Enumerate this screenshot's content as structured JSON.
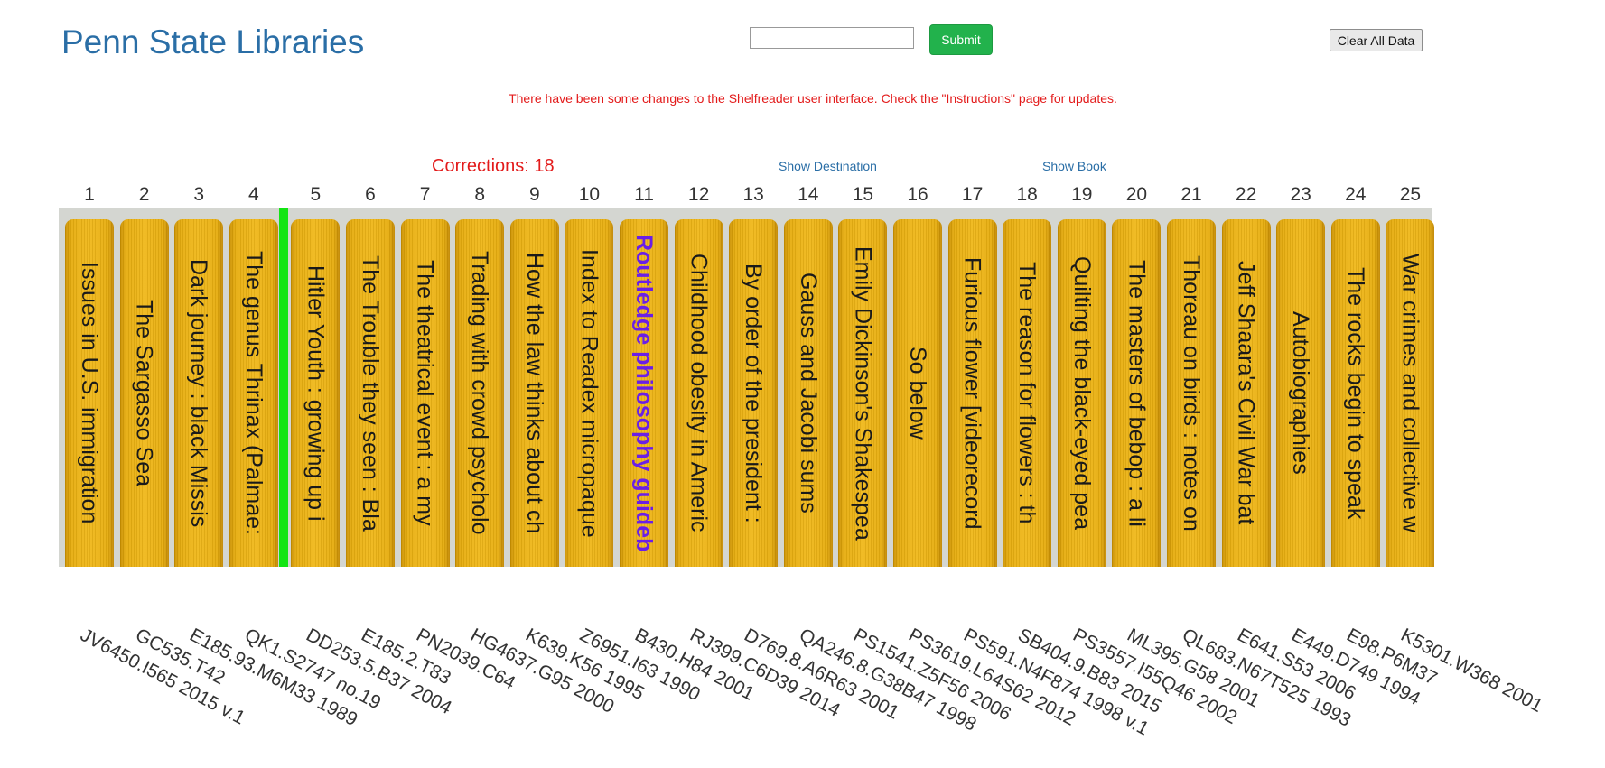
{
  "header": {
    "title": "Penn State Libraries",
    "search_value": "",
    "submit_label": "Submit",
    "clear_label": "Clear All Data"
  },
  "notice": "There have been some changes to the Shelfreader user interface. Check the \"Instructions\" page for updates.",
  "status": {
    "corrections": "Corrections: 18",
    "show_destination": "Show Destination",
    "show_book": "Show Book"
  },
  "colors": {
    "title_blue": "#2a6ea6",
    "notice_red": "#e31b1b",
    "submit_green": "#22b24c",
    "marker_green": "#13e513",
    "highlight_purple": "#6a1fe6",
    "book_gold": "#f0b81a"
  },
  "shelf": {
    "marker_after_position": 4,
    "highlighted_position": 11,
    "books": [
      {
        "position": "1",
        "title": "Issues in U.S. immigration",
        "call_number": "JV6450.I565 2015 v.1"
      },
      {
        "position": "2",
        "title": "The Sargasso Sea",
        "call_number": "GC535.T42"
      },
      {
        "position": "3",
        "title": "Dark journey : black Missis",
        "call_number": "E185.93.M6M33 1989"
      },
      {
        "position": "4",
        "title": "The genus Thrinax (Palmae:",
        "call_number": "QK1.S2747 no.19"
      },
      {
        "position": "5",
        "title": "Hitler Youth : growing up i",
        "call_number": "DD253.5.B37 2004"
      },
      {
        "position": "6",
        "title": "The Trouble they seen : Bla",
        "call_number": "E185.2.T83"
      },
      {
        "position": "7",
        "title": "The theatrical event : a my",
        "call_number": "PN2039.C64"
      },
      {
        "position": "8",
        "title": "Trading with crowd psycholo",
        "call_number": "HG4637.G95 2000"
      },
      {
        "position": "9",
        "title": "How the law thinks about ch",
        "call_number": "K639.K56 1995"
      },
      {
        "position": "10",
        "title": "Index to Readex micropaque",
        "call_number": "Z6951.I63 1990"
      },
      {
        "position": "11",
        "title": "Routledge philosophy guideb",
        "call_number": "B430.H84 2001"
      },
      {
        "position": "12",
        "title": "Childhood obesity in Americ",
        "call_number": "RJ399.C6D39 2014"
      },
      {
        "position": "13",
        "title": "By order of the president :",
        "call_number": "D769.8.A6R63 2001"
      },
      {
        "position": "14",
        "title": "Gauss and Jacobi sums",
        "call_number": "QA246.8.G38B47 1998"
      },
      {
        "position": "15",
        "title": "Emily Dickinson's Shakespea",
        "call_number": "PS1541.Z5F56 2006"
      },
      {
        "position": "16",
        "title": "So below",
        "call_number": "PS3619.L64S62 2012"
      },
      {
        "position": "17",
        "title": "Furious flower [videorecord",
        "call_number": "PS591.N4F874 1998 v.1"
      },
      {
        "position": "18",
        "title": "The reason for flowers : th",
        "call_number": "SB404.9.B83 2015"
      },
      {
        "position": "19",
        "title": "Quilting the black-eyed pea",
        "call_number": "PS3557.I55Q46 2002"
      },
      {
        "position": "20",
        "title": "The masters of bebop : a li",
        "call_number": "ML395.G58 2001"
      },
      {
        "position": "21",
        "title": "Thoreau on birds : notes on",
        "call_number": "QL683.N67T525 1993"
      },
      {
        "position": "22",
        "title": "Jeff Shaara's Civil War bat",
        "call_number": "E641.S53 2006"
      },
      {
        "position": "23",
        "title": "Autobiographies",
        "call_number": "E449.D749 1994"
      },
      {
        "position": "24",
        "title": "The rocks begin to speak",
        "call_number": "E98.P6M37"
      },
      {
        "position": "25",
        "title": "War crimes and collective w",
        "call_number": "K5301.W368 2001"
      }
    ]
  }
}
